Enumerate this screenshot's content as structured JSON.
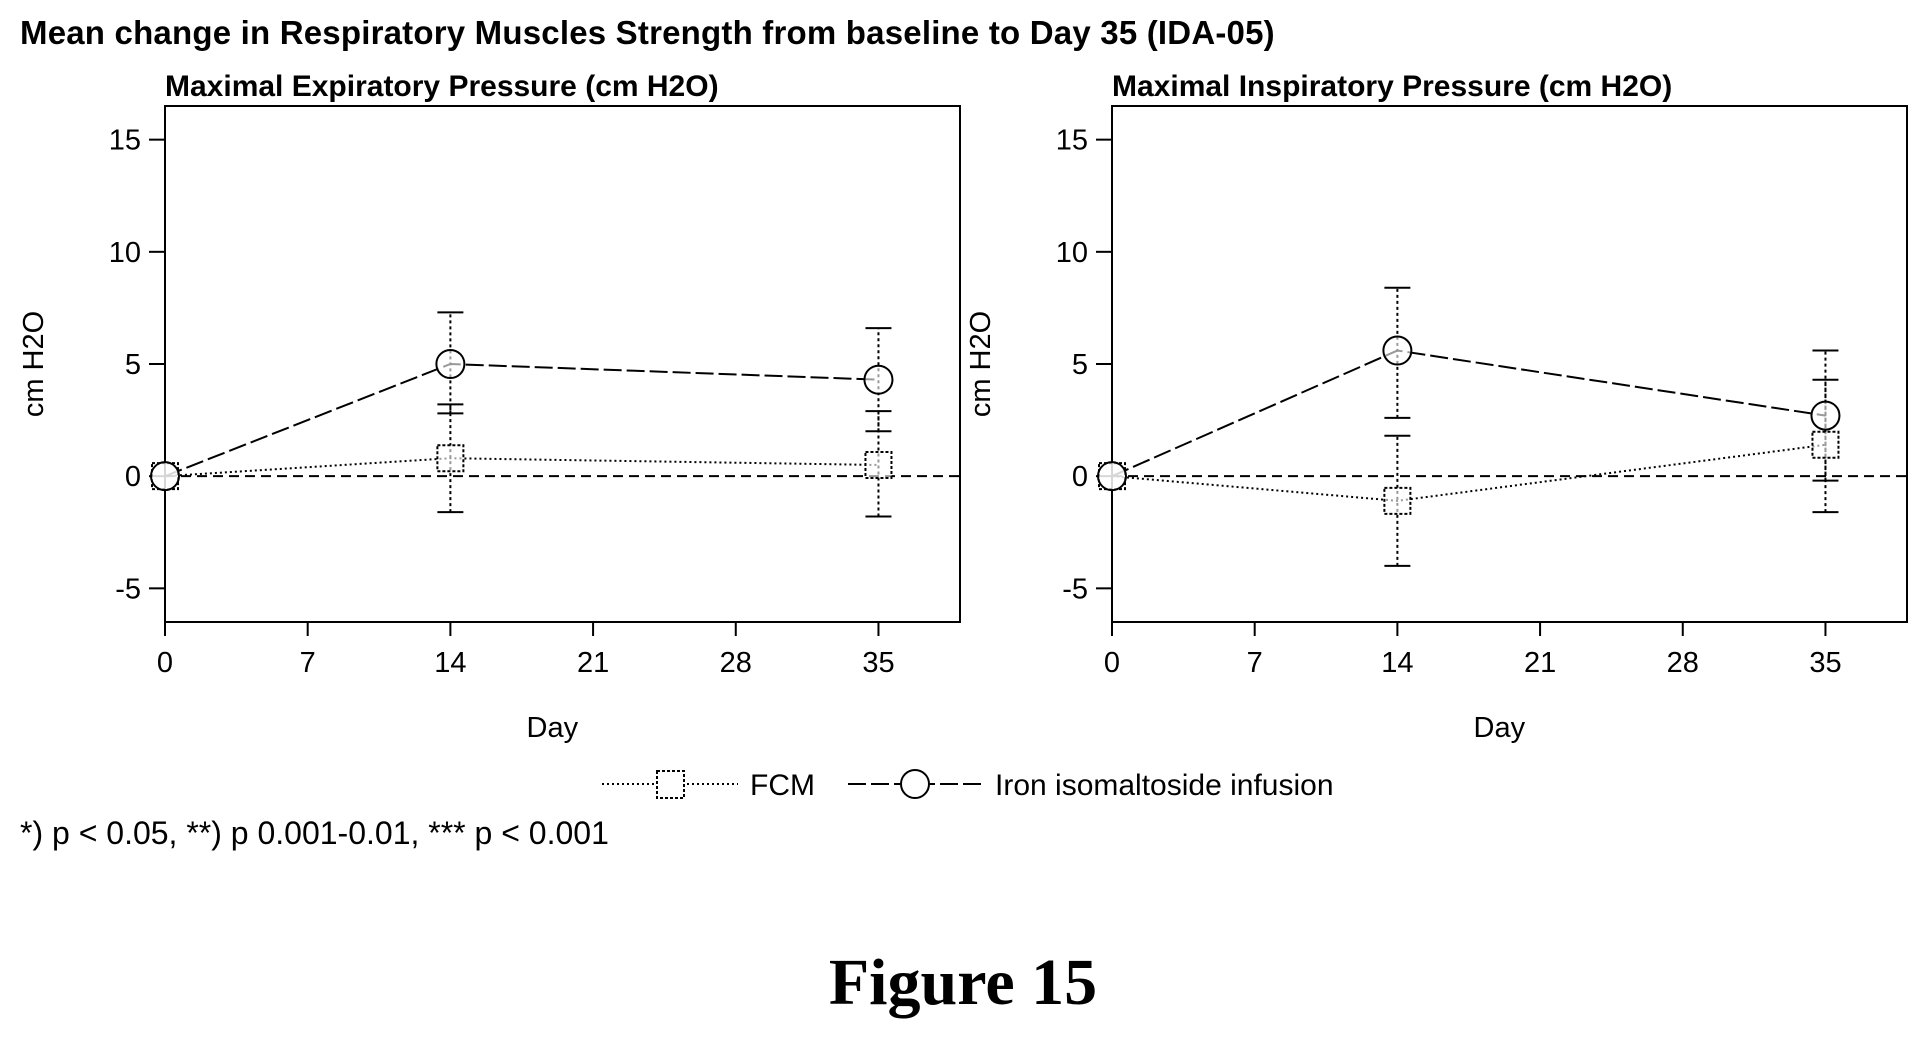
{
  "main_title": "Mean change in Respiratory Muscles Strength from baseline to Day 35 (IDA-05)",
  "footnote": "*) p < 0.05, **) p 0.001-0.01, *** p < 0.001",
  "figure_label": "Figure 15",
  "legend": {
    "series1": "FCM",
    "series2": "Iron isomaltoside infusion"
  },
  "chart_data": [
    {
      "type": "line",
      "title": "Maximal Expiratory Pressure (cm H2O)",
      "xlabel": "Day",
      "ylabel": "cm H2O",
      "x_ticks": [
        "0",
        "7",
        "14",
        "21",
        "28",
        "35"
      ],
      "y_ticks": [
        "15",
        "10",
        "5",
        "0",
        "-5"
      ],
      "xlim": [
        0,
        39
      ],
      "ylim": [
        -6.5,
        16.5
      ],
      "reference_line": 0,
      "series": [
        {
          "name": "FCM",
          "marker": "square",
          "color": "#000000",
          "x": [
            0,
            14,
            35
          ],
          "y": [
            0,
            0.8,
            0.5
          ],
          "error_low": [
            0,
            -1.6,
            -1.8
          ],
          "error_high": [
            0,
            3.2,
            2.9
          ]
        },
        {
          "name": "Iron isomaltoside infusion",
          "marker": "circle",
          "color": "#000000",
          "x": [
            0,
            14,
            35
          ],
          "y": [
            0,
            5.0,
            4.3
          ],
          "error_low": [
            0,
            2.8,
            2.0
          ],
          "error_high": [
            0,
            7.3,
            6.6
          ]
        }
      ]
    },
    {
      "type": "line",
      "title": "Maximal Inspiratory Pressure (cm H2O)",
      "xlabel": "Day",
      "ylabel": "cm H2O",
      "x_ticks": [
        "0",
        "7",
        "14",
        "21",
        "28",
        "35"
      ],
      "y_ticks": [
        "15",
        "10",
        "5",
        "0",
        "-5"
      ],
      "xlim": [
        0,
        39
      ],
      "ylim": [
        -6.5,
        16.5
      ],
      "reference_line": 0,
      "series": [
        {
          "name": "FCM",
          "marker": "square",
          "color": "#000000",
          "x": [
            0,
            14,
            35
          ],
          "y": [
            0,
            -1.1,
            1.4
          ],
          "error_low": [
            0,
            -4.0,
            -1.6
          ],
          "error_high": [
            0,
            1.8,
            4.3
          ]
        },
        {
          "name": "Iron isomaltoside infusion",
          "marker": "circle",
          "color": "#000000",
          "x": [
            0,
            14,
            35
          ],
          "y": [
            0,
            5.6,
            2.7
          ],
          "error_low": [
            0,
            2.6,
            -0.2
          ],
          "error_high": [
            0,
            8.4,
            5.6
          ]
        }
      ]
    }
  ]
}
